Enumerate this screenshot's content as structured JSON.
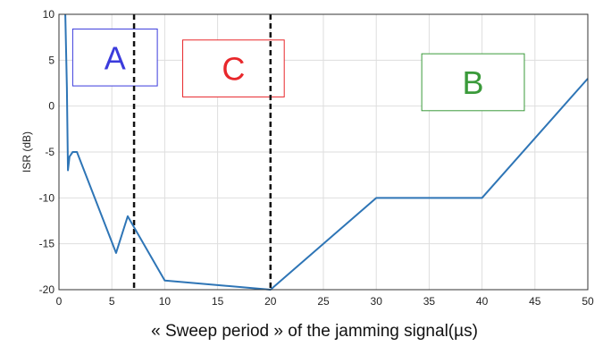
{
  "chart_data": {
    "type": "line",
    "title": "",
    "xlabel": "« Sweep period » of the jamming signal(µs)",
    "ylabel": "ISR (dB)",
    "xlim": [
      0,
      50
    ],
    "ylim": [
      -20,
      10
    ],
    "xticks": [
      0,
      5,
      10,
      15,
      20,
      25,
      30,
      35,
      40,
      45,
      50
    ],
    "yticks": [
      10,
      5,
      0,
      -5,
      -10,
      -15,
      -20
    ],
    "grid": true,
    "series": [
      {
        "color": "#2e75b6",
        "x": [
          0.6,
          0.75,
          0.85,
          1.0,
          1.3,
          1.7,
          5.4,
          6.5,
          10,
          20,
          30,
          40,
          50
        ],
        "y": [
          10,
          2,
          -7,
          -5.5,
          -5,
          -5,
          -16,
          -12,
          -19,
          -20,
          -10,
          -10,
          3
        ]
      }
    ],
    "vlines": [
      {
        "x": 7.1,
        "style": "dashed",
        "color": "#111111"
      },
      {
        "x": 20,
        "style": "dashed",
        "color": "#111111"
      }
    ],
    "annotations": [
      {
        "text": "A",
        "color": "#3b3bdc",
        "x0": 1.3,
        "x1": 9.3,
        "y0": 2.2,
        "y1": 8.4
      },
      {
        "text": "C",
        "color": "#e8272b",
        "x0": 11.7,
        "x1": 21.3,
        "y0": 1.0,
        "y1": 7.2
      },
      {
        "text": "B",
        "color": "#3a9a3a",
        "x0": 34.3,
        "x1": 44.0,
        "y0": -0.5,
        "y1": 5.7
      }
    ]
  }
}
